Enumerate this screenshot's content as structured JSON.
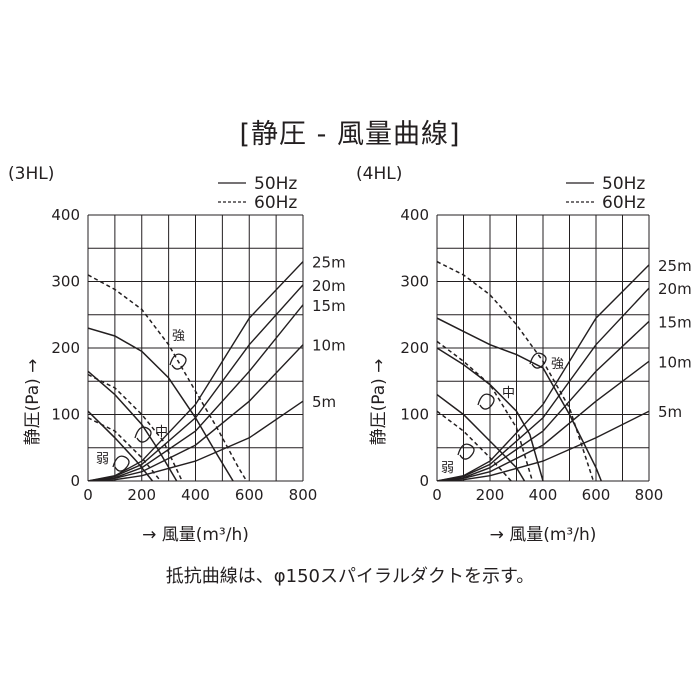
{
  "title": "[静圧 - 風量曲線]",
  "footnote": "抵抗曲線は、φ150スパイラルダクトを示す。",
  "chart_data": [
    {
      "type": "line",
      "model": "(3HL)",
      "xlabel": "→ 風量(m³/h)",
      "ylabel": "静圧(Pa) →",
      "xlim": [
        0,
        800
      ],
      "ylim": [
        0,
        400
      ],
      "x_ticks": [
        "0",
        "200",
        "400",
        "600",
        "800"
      ],
      "y_ticks": [
        "0",
        "100",
        "200",
        "300",
        "400"
      ],
      "grid": true,
      "legend": [
        "50Hz",
        "60Hz"
      ],
      "legend_position": "top-right",
      "series": [
        {
          "name": "強",
          "frequency": "50Hz",
          "style": "solid",
          "x": [
            0,
            100,
            200,
            300,
            400,
            480,
            540
          ],
          "y": [
            230,
            218,
            195,
            155,
            95,
            40,
            0
          ]
        },
        {
          "name": "強",
          "frequency": "60Hz",
          "style": "dashed",
          "x": [
            0,
            100,
            200,
            300,
            400,
            480,
            560,
            590
          ],
          "y": [
            310,
            288,
            258,
            205,
            135,
            80,
            20,
            0
          ]
        },
        {
          "name": "中",
          "frequency": "50Hz",
          "style": "solid",
          "x": [
            0,
            100,
            200,
            260,
            330
          ],
          "y": [
            165,
            130,
            85,
            48,
            0
          ]
        },
        {
          "name": "中",
          "frequency": "60Hz",
          "style": "dashed",
          "x": [
            0,
            100,
            200,
            280,
            350
          ],
          "y": [
            160,
            140,
            100,
            60,
            0
          ]
        },
        {
          "name": "弱",
          "frequency": "50Hz",
          "style": "solid",
          "x": [
            0,
            100,
            180,
            240
          ],
          "y": [
            105,
            65,
            30,
            0
          ]
        },
        {
          "name": "弱",
          "frequency": "60Hz",
          "style": "dashed",
          "x": [
            0,
            100,
            200,
            270
          ],
          "y": [
            95,
            75,
            35,
            0
          ]
        }
      ],
      "resistance_curves": [
        {
          "label": "5m",
          "x": [
            100,
            200,
            400,
            600,
            800
          ],
          "y": [
            2,
            8,
            30,
            65,
            120
          ]
        },
        {
          "label": "10m",
          "x": [
            100,
            200,
            400,
            600,
            800
          ],
          "y": [
            4,
            14,
            54,
            120,
            205
          ]
        },
        {
          "label": "15m",
          "x": [
            100,
            200,
            400,
            600,
            800
          ],
          "y": [
            5,
            20,
            75,
            165,
            265
          ]
        },
        {
          "label": "20m",
          "x": [
            100,
            200,
            400,
            600,
            800
          ],
          "y": [
            7,
            25,
            95,
            205,
            295
          ]
        },
        {
          "label": "25m",
          "x": [
            100,
            200,
            400,
            600,
            800
          ],
          "y": [
            8,
            30,
            115,
            245,
            330
          ]
        }
      ],
      "annotations": [
        "強",
        "中",
        "弱"
      ]
    },
    {
      "type": "line",
      "model": "(4HL)",
      "xlabel": "→ 風量(m³/h)",
      "ylabel": "静圧(Pa) →",
      "xlim": [
        0,
        800
      ],
      "ylim": [
        0,
        400
      ],
      "x_ticks": [
        "0",
        "200",
        "400",
        "600",
        "800"
      ],
      "y_ticks": [
        "0",
        "100",
        "200",
        "300",
        "400"
      ],
      "grid": true,
      "legend": [
        "50Hz",
        "60Hz"
      ],
      "legend_position": "top-right",
      "series": [
        {
          "name": "強",
          "frequency": "50Hz",
          "style": "solid",
          "x": [
            0,
            100,
            200,
            300,
            400,
            500,
            600,
            620
          ],
          "y": [
            245,
            225,
            205,
            190,
            170,
            100,
            20,
            0
          ]
        },
        {
          "name": "強",
          "frequency": "60Hz",
          "style": "dashed",
          "x": [
            0,
            100,
            200,
            300,
            400,
            500,
            590
          ],
          "y": [
            330,
            310,
            280,
            235,
            180,
            110,
            0
          ]
        },
        {
          "name": "中",
          "frequency": "50Hz",
          "style": "solid",
          "x": [
            0,
            100,
            200,
            300,
            350,
            400
          ],
          "y": [
            200,
            175,
            145,
            105,
            70,
            0
          ]
        },
        {
          "name": "中",
          "frequency": "60Hz",
          "style": "dashed",
          "x": [
            0,
            100,
            200,
            300,
            360
          ],
          "y": [
            210,
            180,
            145,
            80,
            0
          ]
        },
        {
          "name": "弱",
          "frequency": "50Hz",
          "style": "solid",
          "x": [
            0,
            100,
            200,
            300,
            330
          ],
          "y": [
            130,
            100,
            60,
            20,
            0
          ]
        },
        {
          "name": "弱",
          "frequency": "60Hz",
          "style": "dashed",
          "x": [
            0,
            100,
            200,
            280
          ],
          "y": [
            105,
            75,
            35,
            0
          ]
        }
      ],
      "resistance_curves": [
        {
          "label": "5m",
          "x": [
            100,
            200,
            400,
            600,
            800
          ],
          "y": [
            2,
            8,
            30,
            65,
            105
          ]
        },
        {
          "label": "10m",
          "x": [
            100,
            200,
            400,
            600,
            800
          ],
          "y": [
            4,
            14,
            54,
            120,
            180
          ]
        },
        {
          "label": "15m",
          "x": [
            100,
            200,
            400,
            600,
            800
          ],
          "y": [
            5,
            20,
            75,
            165,
            240
          ]
        },
        {
          "label": "20m",
          "x": [
            100,
            200,
            400,
            600,
            800
          ],
          "y": [
            7,
            25,
            95,
            205,
            290
          ]
        },
        {
          "label": "25m",
          "x": [
            100,
            200,
            400,
            600,
            800
          ],
          "y": [
            8,
            30,
            115,
            245,
            325
          ]
        }
      ],
      "annotations": [
        "強",
        "中",
        "弱"
      ]
    }
  ]
}
